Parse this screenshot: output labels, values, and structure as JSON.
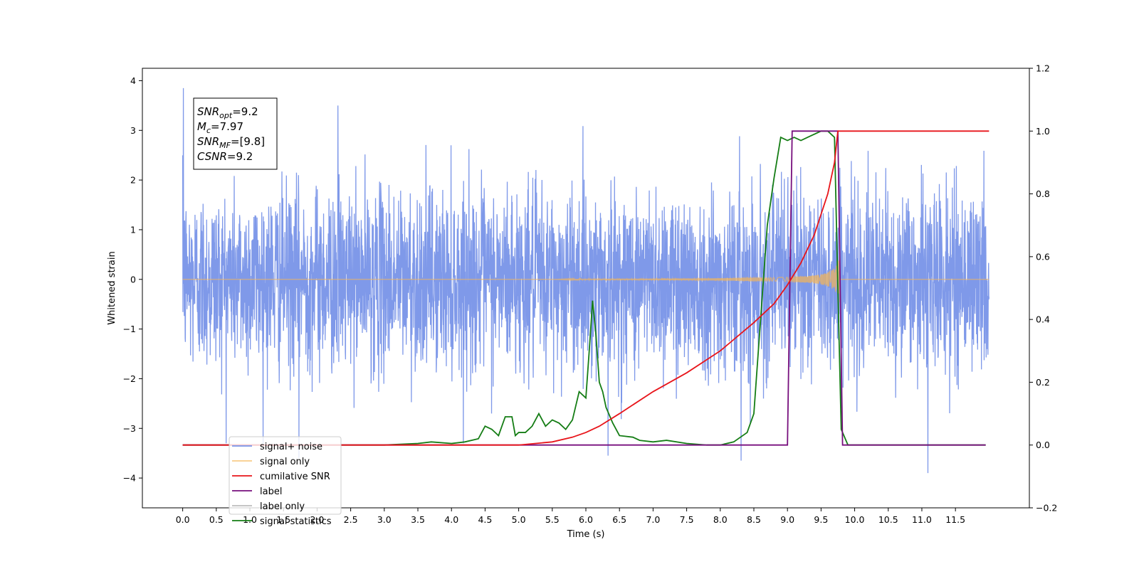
{
  "chart_data": {
    "type": "line",
    "xlabel": "Time (s)",
    "ylabel": "Whitened strain",
    "xlim": [
      -0.6,
      12.6
    ],
    "ylim": [
      -4.6,
      4.25
    ],
    "y2lim": [
      -0.2,
      1.2
    ],
    "x_ticks": [
      "0.0",
      "0.5",
      "1.0",
      "1.5",
      "2.0",
      "2.5",
      "3.0",
      "3.5",
      "4.0",
      "4.5",
      "5.0",
      "5.5",
      "6.0",
      "6.5",
      "7.0",
      "7.5",
      "8.0",
      "8.5",
      "9.0",
      "9.5",
      "10.0",
      "10.5",
      "11.0",
      "11.5"
    ],
    "y_ticks": [
      "−4",
      "−3",
      "−2",
      "−1",
      "0",
      "1",
      "2",
      "3",
      "4"
    ],
    "y2_ticks": [
      "−0.2",
      "0.0",
      "0.2",
      "0.4",
      "0.6",
      "0.8",
      "1.0",
      "1.2"
    ],
    "grid": false,
    "legend_placement": "lower-left",
    "annotation": {
      "lines": [
        {
          "base": "SNR",
          "sub": "opt",
          "rest": "=9.2"
        },
        {
          "base": "M",
          "sub": "c",
          "rest": "=7.97"
        },
        {
          "base": "SNR",
          "sub": "MF",
          "rest": "=[9.8]"
        },
        {
          "base": "CSNR",
          "sub": "",
          "rest": "=9.2"
        }
      ]
    },
    "series": [
      {
        "name": "signal+ noise",
        "color": "#7893e8",
        "axis": "left",
        "kind": "noise",
        "x_range": [
          0.0,
          12.0
        ],
        "noise_std": 0.9,
        "typical_range": [
          -2.2,
          2.3
        ],
        "extremes": [
          {
            "x": 0.01,
            "y": 3.85
          },
          {
            "x": 1.73,
            "y": -3.6
          },
          {
            "x": 2.31,
            "y": 3.5
          },
          {
            "x": 6.33,
            "y": -3.55
          },
          {
            "x": 8.31,
            "y": -3.65
          },
          {
            "x": 11.09,
            "y": -3.9
          }
        ]
      },
      {
        "name": "signal only",
        "color": "#f5b556",
        "axis": "left",
        "kind": "chirp",
        "x_range": [
          0.0,
          12.0
        ],
        "chirp_start": 5.5,
        "merger": 9.78,
        "peak_amplitude": 0.65
      },
      {
        "name": "cumilative SNR",
        "color": "#e8141a",
        "axis": "right",
        "x": [
          0.0,
          5.0,
          5.5,
          5.8,
          6.0,
          6.2,
          6.5,
          7.0,
          7.5,
          8.0,
          8.5,
          8.8,
          9.0,
          9.2,
          9.4,
          9.6,
          9.7,
          9.75,
          9.8,
          10.0,
          12.0
        ],
        "values": [
          0.0,
          0.0,
          0.01,
          0.025,
          0.04,
          0.06,
          0.1,
          0.17,
          0.23,
          0.3,
          0.39,
          0.45,
          0.51,
          0.58,
          0.67,
          0.8,
          0.9,
          1.0,
          1.0,
          1.0,
          1.0
        ]
      },
      {
        "name": "label",
        "color": "#770f7d",
        "axis": "right",
        "x": [
          0.0,
          9.0,
          9.07,
          9.75,
          9.82,
          11.95
        ],
        "values": [
          0.0,
          0.0,
          1.0,
          1.0,
          0.0,
          0.0
        ]
      },
      {
        "name": "label only",
        "color": "#bdbdbd",
        "axis": "right",
        "x": [],
        "values": []
      },
      {
        "name": "signal statistics",
        "color": "#157d15",
        "axis": "right",
        "x": [
          0.0,
          2.0,
          3.0,
          3.5,
          3.7,
          4.0,
          4.2,
          4.4,
          4.5,
          4.6,
          4.7,
          4.8,
          4.85,
          4.9,
          4.95,
          5.0,
          5.1,
          5.2,
          5.3,
          5.4,
          5.5,
          5.6,
          5.7,
          5.8,
          5.9,
          6.0,
          6.05,
          6.1,
          6.15,
          6.2,
          6.25,
          6.3,
          6.4,
          6.5,
          6.7,
          6.8,
          7.0,
          7.2,
          7.5,
          7.8,
          8.0,
          8.2,
          8.4,
          8.5,
          8.6,
          8.7,
          8.8,
          8.9,
          9.0,
          9.1,
          9.2,
          9.3,
          9.5,
          9.6,
          9.7,
          9.75,
          9.8,
          9.9,
          10.0,
          10.5,
          11.95
        ],
        "values": [
          0.0,
          0.0,
          0.0,
          0.005,
          0.01,
          0.005,
          0.01,
          0.02,
          0.06,
          0.05,
          0.03,
          0.09,
          0.09,
          0.09,
          0.03,
          0.04,
          0.04,
          0.06,
          0.1,
          0.06,
          0.08,
          0.07,
          0.05,
          0.08,
          0.17,
          0.15,
          0.3,
          0.46,
          0.35,
          0.2,
          0.17,
          0.12,
          0.07,
          0.03,
          0.025,
          0.015,
          0.01,
          0.015,
          0.005,
          0.0,
          0.0,
          0.01,
          0.04,
          0.1,
          0.4,
          0.7,
          0.85,
          0.98,
          0.97,
          0.98,
          0.97,
          0.98,
          1.0,
          1.0,
          0.98,
          0.5,
          0.05,
          0.0,
          0.0,
          0.0,
          0.0
        ]
      }
    ]
  }
}
